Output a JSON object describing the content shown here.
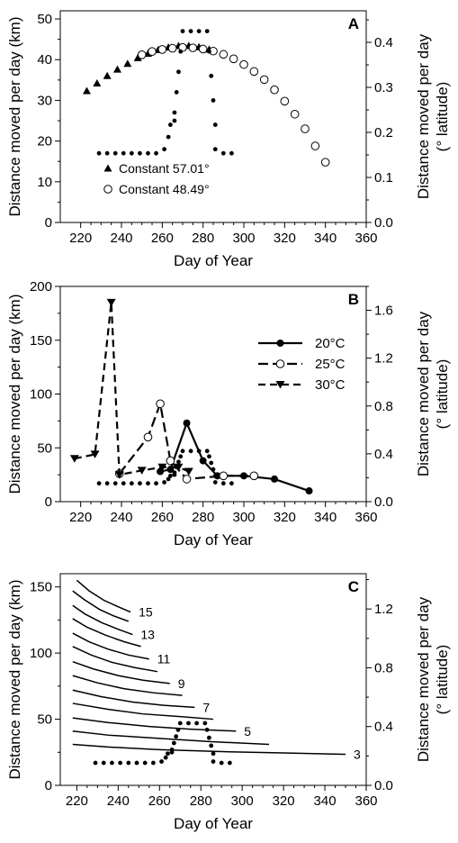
{
  "colors": {
    "ink": "#000000",
    "open_fill": "#ffffff",
    "background": "#ffffff"
  },
  "chart_data": [
    {
      "panel": "A",
      "type": "scatter",
      "xlabel": "Day of Year",
      "ylabel": "Distance moved per day (km)",
      "y2label": [
        "Distance moved per day",
        "(° latitude)"
      ],
      "xlim": [
        210,
        360
      ],
      "ylim": [
        0,
        52
      ],
      "y2lim": [
        0,
        0.47
      ],
      "xticks": [
        220,
        240,
        260,
        280,
        300,
        320,
        340,
        360
      ],
      "yticks": [
        0,
        10,
        20,
        30,
        40,
        50
      ],
      "y2ticks": [
        "0.0",
        "0.1",
        "0.2",
        "0.3",
        "0.4"
      ],
      "y2tick_values": [
        0,
        0.1,
        0.2,
        0.3,
        0.4
      ],
      "legend": {
        "position": "bottom-left",
        "entries": [
          "Constant 57.01°",
          "Constant 48.49°"
        ]
      },
      "series": [
        {
          "name": "Constant 57.01°",
          "marker": "triangle",
          "x": [
            223,
            228,
            233,
            238,
            243,
            248,
            253,
            258,
            263,
            268,
            273,
            278,
            283
          ],
          "y": [
            32.3,
            34.2,
            36.0,
            37.6,
            39.0,
            40.4,
            41.5,
            42.4,
            43.0,
            43.4,
            43.4,
            43.1,
            42.5
          ]
        },
        {
          "name": "Constant 48.49°",
          "marker": "circle-open",
          "x": [
            250,
            255,
            260,
            265,
            270,
            275,
            280,
            285,
            290,
            295,
            300,
            305,
            310,
            315,
            320,
            325,
            330,
            335,
            340
          ],
          "y": [
            41.2,
            42.0,
            42.5,
            42.8,
            43.0,
            42.9,
            42.6,
            42.1,
            41.3,
            40.2,
            38.8,
            37.1,
            35.1,
            32.6,
            29.8,
            26.6,
            23.0,
            18.8,
            14.8
          ]
        },
        {
          "name": "",
          "marker": "dotted",
          "x": [
            229,
            233,
            237,
            241,
            245,
            249,
            253,
            257,
            261,
            263,
            264,
            266,
            266,
            267,
            268,
            269,
            270,
            274,
            278,
            282,
            283,
            284,
            285,
            286,
            286,
            290,
            294
          ],
          "y": [
            17,
            17,
            17,
            17,
            17,
            17,
            17,
            17,
            18,
            21,
            24,
            25,
            27,
            32,
            37,
            42,
            47,
            47,
            47,
            47,
            42,
            36,
            30,
            24,
            18,
            17,
            17
          ]
        }
      ]
    },
    {
      "panel": "B",
      "type": "line",
      "xlabel": "Day of Year",
      "ylabel": "Distance moved per day (km)",
      "y2label": [
        "Distance moved per day",
        "(° latitude)"
      ],
      "xlim": [
        210,
        360
      ],
      "ylim": [
        0,
        200
      ],
      "y2lim": [
        0,
        1.8
      ],
      "xticks": [
        220,
        240,
        260,
        280,
        300,
        320,
        340,
        360
      ],
      "yticks": [
        0,
        50,
        100,
        150,
        200
      ],
      "y2ticks": [
        "0.0",
        "0.4",
        "0.8",
        "1.2",
        "1.6"
      ],
      "y2tick_values": [
        0,
        0.4,
        0.8,
        1.2,
        1.6
      ],
      "legend": {
        "position": "top-right",
        "entries": [
          "20°C",
          "25°C",
          "30°C"
        ]
      },
      "series": [
        {
          "name": "20°C",
          "marker": "circle-filled",
          "dash": "solid",
          "x": [
            259,
            264,
            272,
            280,
            287,
            300,
            315,
            332
          ],
          "y": [
            28,
            30,
            73,
            38,
            24,
            24,
            21,
            10
          ]
        },
        {
          "name": "25°C",
          "marker": "circle-open",
          "dash": "long-dash",
          "x": [
            239,
            253,
            259,
            264,
            272,
            290,
            305
          ],
          "y": [
            26,
            60,
            91,
            38,
            21,
            24,
            24
          ]
        },
        {
          "name": "30°C",
          "marker": "triangle-down",
          "dash": "dash",
          "x": [
            217,
            227,
            235,
            239,
            250,
            260,
            268,
            273
          ],
          "y": [
            40,
            44,
            185,
            25,
            29,
            32,
            32,
            28
          ]
        },
        {
          "name": "",
          "marker": "dotted",
          "x": [
            229,
            233,
            237,
            241,
            245,
            249,
            253,
            257,
            261,
            263,
            264,
            266,
            266,
            267,
            268,
            269,
            270,
            274,
            278,
            282,
            283,
            284,
            285,
            286,
            286,
            290,
            294
          ],
          "y": [
            17,
            17,
            17,
            17,
            17,
            17,
            17,
            17,
            18,
            21,
            24,
            25,
            27,
            32,
            37,
            42,
            47,
            47,
            47,
            47,
            42,
            36,
            30,
            24,
            18,
            17,
            17
          ]
        }
      ]
    },
    {
      "panel": "C",
      "type": "line",
      "xlabel": "Day of Year",
      "ylabel": "Distance moved per day (km)",
      "y2label": [
        "Distance moved per day",
        "(° latitude)"
      ],
      "xlim": [
        212,
        360
      ],
      "ylim": [
        0,
        160
      ],
      "y2lim": [
        0,
        1.44
      ],
      "xticks": [
        220,
        240,
        260,
        280,
        300,
        320,
        340,
        360
      ],
      "yticks": [
        0,
        50,
        100,
        150
      ],
      "y2ticks": [
        "0.0",
        "0.4",
        "0.8",
        "1.2"
      ],
      "y2tick_values": [
        0,
        0.4,
        0.8,
        1.2
      ],
      "curve_labels": [
        "15",
        "13",
        "11",
        "9",
        "7",
        "5",
        "3"
      ],
      "series": [
        {
          "name": "",
          "label": "3",
          "x": [
            218,
            235,
            260,
            290,
            320,
            350
          ],
          "y": [
            31,
            29,
            27,
            25.5,
            24.5,
            23.5
          ]
        },
        {
          "name": "",
          "label": "",
          "x": [
            218,
            235,
            260,
            285,
            313
          ],
          "y": [
            41,
            38,
            35.5,
            33,
            31
          ]
        },
        {
          "name": "",
          "label": "5",
          "x": [
            218,
            235,
            255,
            275,
            297
          ],
          "y": [
            51,
            47.5,
            44.5,
            42.5,
            41
          ]
        },
        {
          "name": "",
          "label": "",
          "x": [
            218,
            235,
            252,
            270,
            286
          ],
          "y": [
            62,
            57.5,
            54,
            52,
            50
          ]
        },
        {
          "name": "",
          "label": "7",
          "x": [
            218,
            232,
            247,
            262,
            277
          ],
          "y": [
            72,
            67,
            63,
            60.5,
            59
          ]
        },
        {
          "name": "",
          "label": "",
          "x": [
            218,
            230,
            243,
            257,
            271
          ],
          "y": [
            83,
            77.5,
            73,
            70,
            68
          ]
        },
        {
          "name": "",
          "label": "9",
          "x": [
            218,
            228,
            240,
            252,
            265
          ],
          "y": [
            93.5,
            88,
            83,
            79.5,
            77
          ]
        },
        {
          "name": "",
          "label": "",
          "x": [
            218,
            227,
            237,
            248,
            259
          ],
          "y": [
            105,
            98.5,
            93,
            89,
            86
          ]
        },
        {
          "name": "",
          "label": "11",
          "x": [
            218,
            226,
            235,
            245,
            255
          ],
          "y": [
            115,
            108.5,
            103,
            98.5,
            95.5
          ]
        },
        {
          "name": "",
          "label": "",
          "x": [
            218,
            225,
            234,
            243,
            251
          ],
          "y": [
            126,
            119.5,
            113.5,
            108.5,
            105
          ]
        },
        {
          "name": "",
          "label": "13",
          "x": [
            218,
            224,
            232,
            240,
            247
          ],
          "y": [
            136,
            129.5,
            123,
            118,
            114
          ]
        },
        {
          "name": "",
          "label": "",
          "x": [
            218,
            224,
            231,
            238,
            245
          ],
          "y": [
            147,
            140,
            133,
            128,
            124
          ]
        },
        {
          "name": "",
          "label": "15",
          "x": [
            220,
            226,
            233,
            240,
            246
          ],
          "y": [
            155,
            147,
            140,
            135,
            131
          ]
        },
        {
          "name": "",
          "label": "",
          "marker": "dotted",
          "x": [
            229,
            233,
            237,
            241,
            245,
            249,
            253,
            257,
            261,
            263,
            264,
            266,
            266,
            267,
            268,
            269,
            270,
            274,
            278,
            282,
            283,
            284,
            285,
            286,
            286,
            290,
            294
          ],
          "y": [
            17,
            17,
            17,
            17,
            17,
            17,
            17,
            17,
            18,
            21,
            24,
            25,
            27,
            32,
            37,
            42,
            47,
            47,
            47,
            47,
            42,
            36,
            30,
            24,
            18,
            17,
            17
          ]
        }
      ]
    }
  ]
}
